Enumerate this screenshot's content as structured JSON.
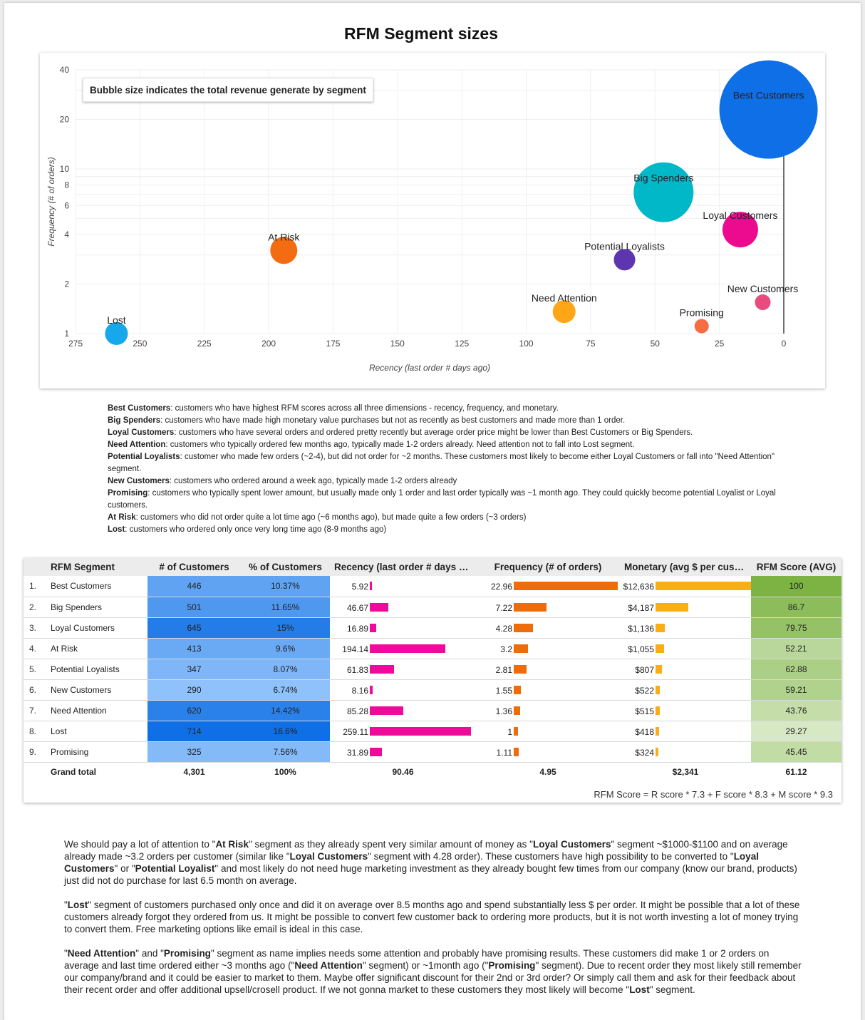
{
  "report_title": "RFM Segment sizes",
  "chart_note": "Bubble size indicates the total revenue generate by segment",
  "chart_data": {
    "type": "scatter",
    "title": "",
    "xlabel": "Recency (last order # days ago)",
    "ylabel": "Frequency (# of orders)",
    "xlim": [
      275,
      0
    ],
    "x_ticks": [
      275,
      250,
      225,
      200,
      175,
      150,
      125,
      100,
      75,
      50,
      25,
      0
    ],
    "ylim": [
      1,
      40
    ],
    "y_scale": "log",
    "y_ticks": [
      1,
      2,
      4,
      6,
      8,
      10,
      20,
      40
    ],
    "grid": true,
    "bubble_size": "total revenue by segment",
    "points": [
      {
        "name": "Best Customers",
        "x": 5.92,
        "y": 22.96,
        "color": "#0f6fe6",
        "revenue_rank": 1
      },
      {
        "name": "Big Spenders",
        "x": 46.67,
        "y": 7.22,
        "color": "#00b8c8",
        "revenue_rank": 2
      },
      {
        "name": "Loyal Customers",
        "x": 16.89,
        "y": 4.28,
        "color": "#ec0b8f",
        "revenue_rank": 3
      },
      {
        "name": "Potential Loyalists",
        "x": 61.83,
        "y": 2.81,
        "color": "#5e35b1"
      },
      {
        "name": "At Risk",
        "x": 194.14,
        "y": 3.2,
        "color": "#f36c12"
      },
      {
        "name": "Need Attention",
        "x": 85.28,
        "y": 1.36,
        "color": "#ffa616"
      },
      {
        "name": "New Customers",
        "x": 8.16,
        "y": 1.55,
        "color": "#ea4b7e"
      },
      {
        "name": "Promising",
        "x": 31.89,
        "y": 1.11,
        "color": "#f46d43"
      },
      {
        "name": "Lost",
        "x": 259.11,
        "y": 1.0,
        "color": "#17a8ec"
      }
    ]
  },
  "definitions": [
    {
      "term": "Best Customers",
      "text": ": customers who have highest RFM scores across all three dimensions - recency, frequency, and monetary."
    },
    {
      "term": "Big Spenders",
      "text": ": customers who have made high monetary value purchases but not as recently as best customers and made more than 1 order."
    },
    {
      "term": "Loyal Customers",
      "text": ": customers who have several orders and ordered pretty recently but average order price might be lower than Best Customers or Big Spenders."
    },
    {
      "term": "Need Attention",
      "text": ": customers who typically ordered few months ago, typically made 1-2 orders already. Need attention not to fall into Lost segment."
    },
    {
      "term": "Potential Loyalists",
      "text": ": customer who made few orders (~2-4), but did not order for ~2 months. These customers most likely to become either Loyal Customers or fall into \"Need Attention\" segment."
    },
    {
      "term": "New Customers",
      "text": ": customers who ordered around a week ago, typically made 1-2 orders already"
    },
    {
      "term": "Promising",
      "text": ": customers who typically spent lower amount, but usually made only 1 order and last order typically was ~1 month ago. They could quickly become potential Loyalist or Loyal customers."
    },
    {
      "term": "At Risk",
      "text": ": customers who did not order quite a lot time ago (~6 months ago), but made quite a few orders (~3 orders)"
    },
    {
      "term": "Lost",
      "text": ": customers who ordered only once very long time ago (8-9 months ago)"
    }
  ],
  "table": {
    "headers": [
      "RFM Segment",
      "# of Customers",
      "% of Customers",
      "Recency (last order # days a...",
      "Frequency (# of orders)",
      "Monetary (avg $ per custome...",
      "RFM Score (AVG)"
    ],
    "max": {
      "recency": 259.11,
      "frequency": 22.96,
      "monetary": 12636
    },
    "rows": [
      {
        "idx": "1.",
        "segment": "Best Customers",
        "customers": "446",
        "customers_n": 446,
        "pct": "10.37%",
        "recency": "5.92",
        "recency_n": 5.92,
        "frequency": "22.96",
        "frequency_n": 22.96,
        "monetary": "$12,636",
        "monetary_n": 12636,
        "score": "100",
        "score_n": 100
      },
      {
        "idx": "2.",
        "segment": "Big Spenders",
        "customers": "501",
        "customers_n": 501,
        "pct": "11.65%",
        "recency": "46.67",
        "recency_n": 46.67,
        "frequency": "7.22",
        "frequency_n": 7.22,
        "monetary": "$4,187",
        "monetary_n": 4187,
        "score": "86.7",
        "score_n": 86.7
      },
      {
        "idx": "3.",
        "segment": "Loyal Customers",
        "customers": "645",
        "customers_n": 645,
        "pct": "15%",
        "recency": "16.89",
        "recency_n": 16.89,
        "frequency": "4.28",
        "frequency_n": 4.28,
        "monetary": "$1,136",
        "monetary_n": 1136,
        "score": "79.75",
        "score_n": 79.75
      },
      {
        "idx": "4.",
        "segment": "At Risk",
        "customers": "413",
        "customers_n": 413,
        "pct": "9.6%",
        "recency": "194.14",
        "recency_n": 194.14,
        "frequency": "3.2",
        "frequency_n": 3.2,
        "monetary": "$1,055",
        "monetary_n": 1055,
        "score": "52.21",
        "score_n": 52.21
      },
      {
        "idx": "5.",
        "segment": "Potential Loyalists",
        "customers": "347",
        "customers_n": 347,
        "pct": "8.07%",
        "recency": "61.83",
        "recency_n": 61.83,
        "frequency": "2.81",
        "frequency_n": 2.81,
        "monetary": "$807",
        "monetary_n": 807,
        "score": "62.88",
        "score_n": 62.88
      },
      {
        "idx": "6.",
        "segment": "New Customers",
        "customers": "290",
        "customers_n": 290,
        "pct": "6.74%",
        "recency": "8.16",
        "recency_n": 8.16,
        "frequency": "1.55",
        "frequency_n": 1.55,
        "monetary": "$522",
        "monetary_n": 522,
        "score": "59.21",
        "score_n": 59.21
      },
      {
        "idx": "7.",
        "segment": "Need Attention",
        "customers": "620",
        "customers_n": 620,
        "pct": "14.42%",
        "recency": "85.28",
        "recency_n": 85.28,
        "frequency": "1.36",
        "frequency_n": 1.36,
        "monetary": "$515",
        "monetary_n": 515,
        "score": "43.76",
        "score_n": 43.76
      },
      {
        "idx": "8.",
        "segment": "Lost",
        "customers": "714",
        "customers_n": 714,
        "pct": "16.6%",
        "recency": "259.11",
        "recency_n": 259.11,
        "frequency": "1",
        "frequency_n": 1,
        "monetary": "$418",
        "monetary_n": 418,
        "score": "29.27",
        "score_n": 29.27
      },
      {
        "idx": "9.",
        "segment": "Promising",
        "customers": "325",
        "customers_n": 325,
        "pct": "7.56%",
        "recency": "31.89",
        "recency_n": 31.89,
        "frequency": "1.11",
        "frequency_n": 1.11,
        "monetary": "$324",
        "monetary_n": 324,
        "score": "45.45",
        "score_n": 45.45
      }
    ],
    "total": {
      "label": "Grand total",
      "customers": "4,301",
      "pct": "100%",
      "recency": "90.46",
      "frequency": "4.95",
      "monetary": "$2,341",
      "score": "61.12"
    },
    "colors": {
      "recency_bar": "#f00a9b",
      "frequency_bar": "#ef6c0a",
      "monetary_bar": "#fbae13"
    }
  },
  "formula": "RFM Score = R score * 7.3 + F score * 8.3 + M score * 9.3",
  "paragraphs": [
    [
      {
        "t": "We should pay a lot of attention to \""
      },
      {
        "t": "At Risk",
        "b": true
      },
      {
        "t": "\" segment as they already spent very similar amount of money as \""
      },
      {
        "t": "Loyal Customers",
        "b": true
      },
      {
        "t": "\" segment ~$1000-$1100 and on average already made ~3.2 orders per customer (similar like \""
      },
      {
        "t": "Loyal Customers",
        "b": true
      },
      {
        "t": "\" segment with 4.28 order). These customers have high possibility to be converted to \""
      },
      {
        "t": "Loyal Customers",
        "b": true
      },
      {
        "t": "\" or \""
      },
      {
        "t": "Potential Loyalist",
        "b": true
      },
      {
        "t": "\" and most likely do not need huge marketing investment as they already bought few times from our company (know our brand, products) just did not do purchase for last 6.5 month on average."
      }
    ],
    [
      {
        "t": "\""
      },
      {
        "t": "Lost",
        "b": true
      },
      {
        "t": "\" segment of customers purchased only once and did it on average over 8.5 months ago and spend substantially less $ per order. It might be possible that a lot of these customers already forgot they ordered from us. It might be possible to convert few customer back to ordering more products, but it is not worth investing a lot of money trying to convert them. Free marketing options like email is ideal in this case."
      }
    ],
    [
      {
        "t": "\""
      },
      {
        "t": "Need Attention",
        "b": true
      },
      {
        "t": "\" and \""
      },
      {
        "t": "Promising",
        "b": true
      },
      {
        "t": "\" segment as name implies needs some attention and probably have promising results. These customers did make 1 or 2 orders on average and last time ordered either ~3 months ago (\""
      },
      {
        "t": "Need Attention",
        "b": true
      },
      {
        "t": "\" segment) or ~1month ago (\""
      },
      {
        "t": "Promising",
        "b": true
      },
      {
        "t": "\" segment). Due to recent order they most likely still remember our company/brand and it could be easier to market to them. Maybe offer significant discount for their 2nd or 3rd order? Or simply call them and ask for their feedback about their recent order and offer additional upsell/crosell product. If we not gonna market to these customers they most likely will become \""
      },
      {
        "t": "Lost",
        "b": true
      },
      {
        "t": "\" segment."
      }
    ]
  ]
}
